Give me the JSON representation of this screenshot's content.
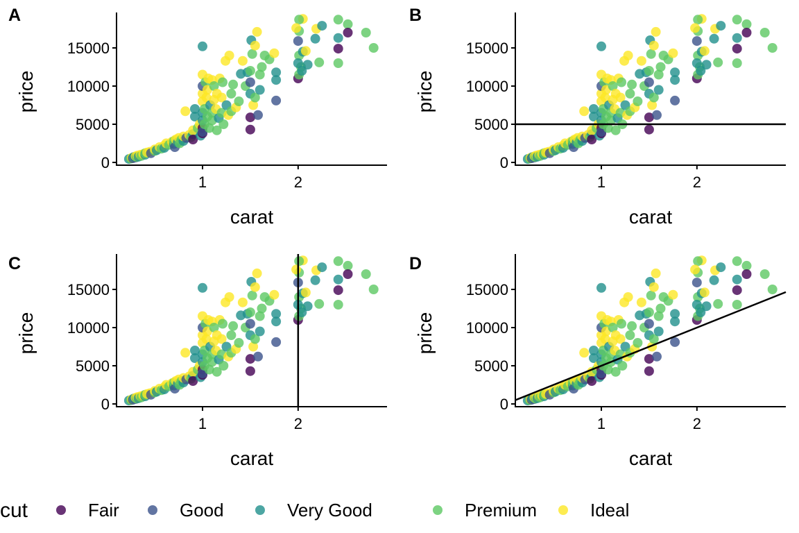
{
  "chart_data": {
    "type": "scatter",
    "xlabel": "carat",
    "ylabel": "price",
    "xlim": [
      0.1,
      2.93
    ],
    "ylim": [
      -360,
      19640
    ],
    "xticks": [
      1,
      2
    ],
    "yticks": [
      0,
      5000,
      10000,
      15000
    ],
    "grid": false,
    "legend": {
      "title": "cut",
      "placement": "bottom",
      "entries": [
        "Fair",
        "Good",
        "Very Good",
        "Premium",
        "Ideal"
      ]
    },
    "colors": [
      "#440154",
      "#3B528B",
      "#21908C",
      "#5DC863",
      "#FDE725"
    ],
    "panels": [
      {
        "tag": "A",
        "annotation": {
          "kind": "none"
        }
      },
      {
        "tag": "B",
        "annotation": {
          "kind": "hline",
          "y": 5000
        }
      },
      {
        "tag": "C",
        "annotation": {
          "kind": "vline",
          "x": 2
        }
      },
      {
        "tag": "D",
        "annotation": {
          "kind": "abline",
          "intercept": 0,
          "slope": 5000
        }
      }
    ],
    "points_format": [
      "carat",
      "price",
      "cut_index"
    ],
    "points": [
      [
        0.23,
        450,
        2
      ],
      [
        0.25,
        500,
        3
      ],
      [
        0.26,
        600,
        4
      ],
      [
        0.27,
        550,
        1
      ],
      [
        0.28,
        700,
        2
      ],
      [
        0.3,
        650,
        1
      ],
      [
        0.3,
        800,
        4
      ],
      [
        0.31,
        700,
        3
      ],
      [
        0.32,
        900,
        4
      ],
      [
        0.33,
        750,
        2
      ],
      [
        0.35,
        1000,
        4
      ],
      [
        0.36,
        850,
        3
      ],
      [
        0.38,
        1100,
        4
      ],
      [
        0.4,
        1000,
        2
      ],
      [
        0.4,
        1200,
        3
      ],
      [
        0.42,
        1300,
        4
      ],
      [
        0.45,
        1400,
        4
      ],
      [
        0.46,
        1200,
        1
      ],
      [
        0.5,
        1500,
        3
      ],
      [
        0.5,
        1700,
        4
      ],
      [
        0.52,
        1600,
        2
      ],
      [
        0.55,
        2000,
        4
      ],
      [
        0.57,
        1800,
        3
      ],
      [
        0.6,
        2200,
        4
      ],
      [
        0.6,
        1900,
        2
      ],
      [
        0.62,
        2500,
        4
      ],
      [
        0.65,
        2300,
        3
      ],
      [
        0.68,
        2700,
        4
      ],
      [
        0.7,
        2400,
        2
      ],
      [
        0.7,
        2800,
        3
      ],
      [
        0.71,
        2000,
        1
      ],
      [
        0.72,
        3000,
        4
      ],
      [
        0.74,
        2600,
        2
      ],
      [
        0.75,
        3200,
        4
      ],
      [
        0.76,
        2500,
        3
      ],
      [
        0.78,
        3000,
        3
      ],
      [
        0.8,
        2800,
        2
      ],
      [
        0.8,
        3400,
        4
      ],
      [
        0.82,
        6700,
        4
      ],
      [
        0.83,
        3200,
        1
      ],
      [
        0.86,
        3600,
        4
      ],
      [
        0.88,
        3300,
        3
      ],
      [
        0.9,
        3700,
        2
      ],
      [
        0.9,
        4200,
        4
      ],
      [
        0.9,
        3000,
        0
      ],
      [
        0.92,
        7000,
        2
      ],
      [
        0.92,
        6000,
        2
      ],
      [
        0.95,
        4500,
        3
      ],
      [
        0.97,
        5000,
        4
      ],
      [
        0.98,
        3500,
        2
      ],
      [
        1.0,
        4500,
        0
      ],
      [
        1.0,
        3800,
        0
      ],
      [
        1.0,
        4000,
        1
      ],
      [
        1.0,
        5500,
        2
      ],
      [
        1.0,
        6500,
        2
      ],
      [
        1.0,
        8000,
        4
      ],
      [
        1.0,
        9000,
        4
      ],
      [
        1.0,
        10000,
        1
      ],
      [
        1.0,
        11500,
        4
      ],
      [
        1.0,
        15200,
        2
      ],
      [
        1.02,
        7000,
        3
      ],
      [
        1.02,
        5000,
        3
      ],
      [
        1.03,
        10500,
        3
      ],
      [
        1.04,
        8500,
        4
      ],
      [
        1.05,
        6000,
        3
      ],
      [
        1.05,
        9500,
        4
      ],
      [
        1.06,
        11000,
        4
      ],
      [
        1.07,
        4500,
        3
      ],
      [
        1.08,
        7500,
        2
      ],
      [
        1.1,
        10800,
        4
      ],
      [
        1.1,
        6500,
        3
      ],
      [
        1.1,
        5500,
        3
      ],
      [
        1.12,
        8200,
        4
      ],
      [
        1.12,
        10000,
        3
      ],
      [
        1.14,
        7000,
        4
      ],
      [
        1.15,
        4200,
        3
      ],
      [
        1.15,
        9000,
        4
      ],
      [
        1.17,
        5800,
        2
      ],
      [
        1.18,
        11000,
        4
      ],
      [
        1.2,
        6500,
        3
      ],
      [
        1.2,
        8500,
        4
      ],
      [
        1.21,
        10500,
        3
      ],
      [
        1.22,
        5000,
        3
      ],
      [
        1.24,
        13300,
        4
      ],
      [
        1.25,
        7500,
        2
      ],
      [
        1.27,
        6200,
        4
      ],
      [
        1.28,
        14000,
        4
      ],
      [
        1.3,
        9000,
        3
      ],
      [
        1.3,
        6700,
        3
      ],
      [
        1.32,
        10200,
        3
      ],
      [
        1.35,
        7200,
        4
      ],
      [
        1.38,
        8000,
        3
      ],
      [
        1.4,
        11600,
        2
      ],
      [
        1.42,
        13300,
        4
      ],
      [
        1.45,
        10000,
        3
      ],
      [
        1.47,
        11800,
        2
      ],
      [
        1.5,
        5900,
        0
      ],
      [
        1.5,
        4300,
        0
      ],
      [
        1.5,
        10500,
        1
      ],
      [
        1.5,
        9000,
        2
      ],
      [
        1.5,
        12000,
        3
      ],
      [
        1.51,
        16000,
        2
      ],
      [
        1.52,
        14200,
        3
      ],
      [
        1.53,
        7500,
        4
      ],
      [
        1.55,
        15300,
        4
      ],
      [
        1.55,
        8500,
        3
      ],
      [
        1.57,
        17100,
        4
      ],
      [
        1.58,
        6200,
        1
      ],
      [
        1.6,
        11500,
        3
      ],
      [
        1.6,
        9500,
        2
      ],
      [
        1.62,
        12500,
        3
      ],
      [
        1.65,
        14000,
        3
      ],
      [
        1.7,
        13500,
        3
      ],
      [
        1.75,
        14300,
        4
      ],
      [
        1.77,
        11800,
        2
      ],
      [
        1.77,
        10800,
        2
      ],
      [
        1.77,
        8100,
        1
      ],
      [
        2.05,
        18800,
        4
      ],
      [
        2.01,
        18700,
        3
      ],
      [
        2.01,
        17200,
        3
      ],
      [
        1.98,
        17600,
        4
      ],
      [
        2.19,
        17500,
        4
      ],
      [
        2.25,
        17900,
        2
      ],
      [
        2.42,
        18700,
        3
      ],
      [
        2.52,
        18100,
        3
      ],
      [
        2.52,
        17000,
        0
      ],
      [
        2.42,
        14900,
        0
      ],
      [
        2.42,
        13000,
        3
      ],
      [
        2.42,
        16300,
        2
      ],
      [
        2.71,
        17000,
        3
      ],
      [
        2.79,
        15000,
        3
      ],
      [
        2.22,
        13100,
        3
      ],
      [
        2.18,
        16200,
        2
      ],
      [
        2.0,
        15900,
        1
      ],
      [
        2.0,
        11000,
        0
      ],
      [
        2.01,
        14000,
        3
      ],
      [
        2.05,
        14500,
        2
      ],
      [
        2.03,
        12500,
        3
      ],
      [
        2.01,
        11500,
        3
      ],
      [
        2.1,
        12800,
        2
      ],
      [
        2.08,
        14600,
        4
      ],
      [
        2.0,
        13000,
        2
      ],
      [
        2.04,
        12000,
        2
      ]
    ]
  }
}
